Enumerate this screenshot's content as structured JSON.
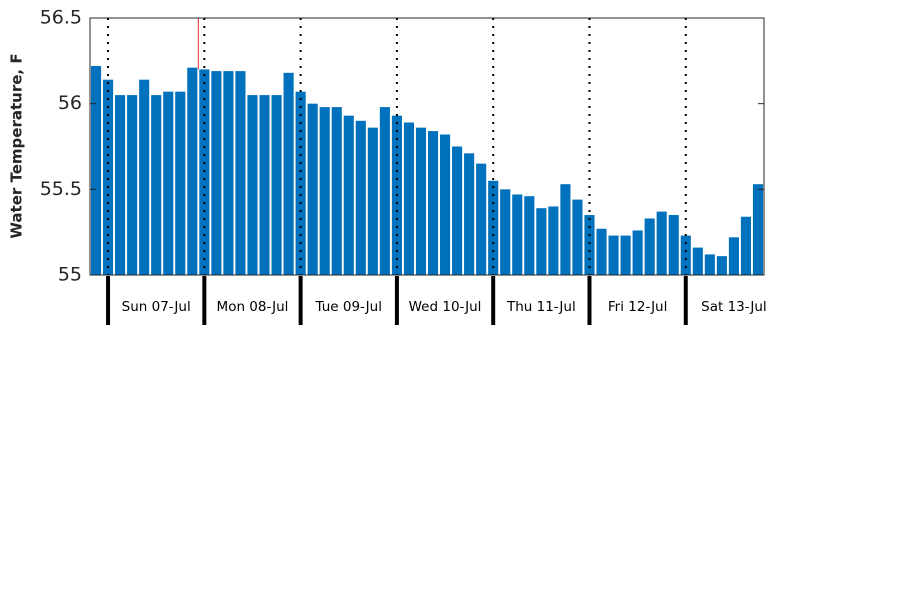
{
  "chart_data": {
    "type": "bar",
    "ylabel": "Water Temperature, F",
    "categories": [
      null,
      null,
      null,
      null,
      null,
      null,
      null,
      null,
      null,
      null,
      null,
      null,
      null,
      null,
      null,
      null,
      null,
      null,
      null,
      null,
      null,
      null,
      null,
      null,
      null,
      null,
      null,
      null,
      null,
      null,
      null,
      null,
      null,
      null,
      null,
      null,
      null,
      null,
      null,
      null,
      null,
      null,
      null,
      null,
      null,
      null,
      null,
      null,
      null,
      null,
      null,
      null,
      null,
      null,
      null,
      null
    ],
    "values": [
      56.22,
      56.14,
      56.05,
      56.05,
      56.14,
      56.05,
      56.07,
      56.07,
      56.21,
      56.2,
      56.19,
      56.19,
      56.19,
      56.05,
      56.05,
      56.05,
      56.18,
      56.07,
      56.0,
      55.98,
      55.98,
      55.93,
      55.9,
      55.86,
      55.98,
      55.93,
      55.89,
      55.86,
      55.84,
      55.82,
      55.75,
      55.71,
      55.65,
      55.55,
      55.5,
      55.47,
      55.46,
      55.39,
      55.4,
      55.53,
      55.44,
      55.35,
      55.27,
      55.23,
      55.23,
      55.26,
      55.33,
      55.37,
      55.35,
      55.23,
      55.16,
      55.12,
      55.11,
      55.22,
      55.34,
      55.53
    ],
    "color": "#0072bd",
    "day_labels": [
      "Sun 07-Jul",
      "Mon 08-Jul",
      "Tue 09-Jul",
      "Wed 10-Jul",
      "Thu 11-Jul",
      "Fri 12-Jul",
      "Sat 13-Jul"
    ],
    "ylim": [
      55,
      56.5
    ],
    "yticks": [
      55,
      55.5,
      56,
      56.5
    ]
  }
}
